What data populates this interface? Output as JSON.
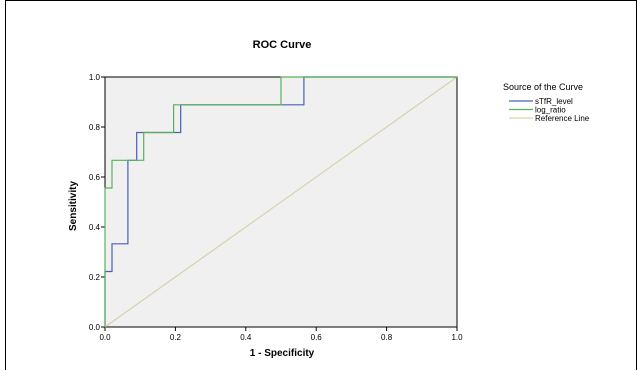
{
  "chart_data": {
    "type": "line",
    "title": "ROC Curve",
    "xlabel": "1 - Specificity",
    "ylabel": "Sensitivity",
    "xlim": [
      0,
      1
    ],
    "ylim": [
      0,
      1
    ],
    "x_ticks": [
      "0.0",
      "0.2",
      "0.4",
      "0.6",
      "0.8",
      "1.0"
    ],
    "y_ticks": [
      "0.0",
      "0.2",
      "0.4",
      "0.6",
      "0.8",
      "1.0"
    ],
    "grid": false,
    "legend": {
      "title": "Source of the Curve",
      "placement": "right"
    },
    "background_color": "#f0f0f0",
    "series": [
      {
        "name": "sTfR_level",
        "color": "#4a5fb5",
        "x": [
          0,
          0,
          0.02,
          0.02,
          0.065,
          0.065,
          0.09,
          0.09,
          0.215,
          0.215,
          0.565,
          0.565,
          1
        ],
        "y": [
          0,
          0.222,
          0.222,
          0.333,
          0.333,
          0.667,
          0.667,
          0.778,
          0.778,
          0.889,
          0.889,
          1,
          1
        ]
      },
      {
        "name": "log_ratio",
        "color": "#5ab05a",
        "x": [
          0,
          0,
          0.02,
          0.02,
          0.085,
          0.085,
          0.11,
          0.11,
          0.195,
          0.195,
          0.5,
          0.5,
          1
        ],
        "y": [
          0,
          0.556,
          0.556,
          0.667,
          0.667,
          0.667,
          0.667,
          0.778,
          0.778,
          0.889,
          0.889,
          1,
          1
        ]
      },
      {
        "name": "Reference Line",
        "color": "#d8d2a8",
        "x": [
          0,
          1
        ],
        "y": [
          0,
          1
        ]
      }
    ]
  }
}
